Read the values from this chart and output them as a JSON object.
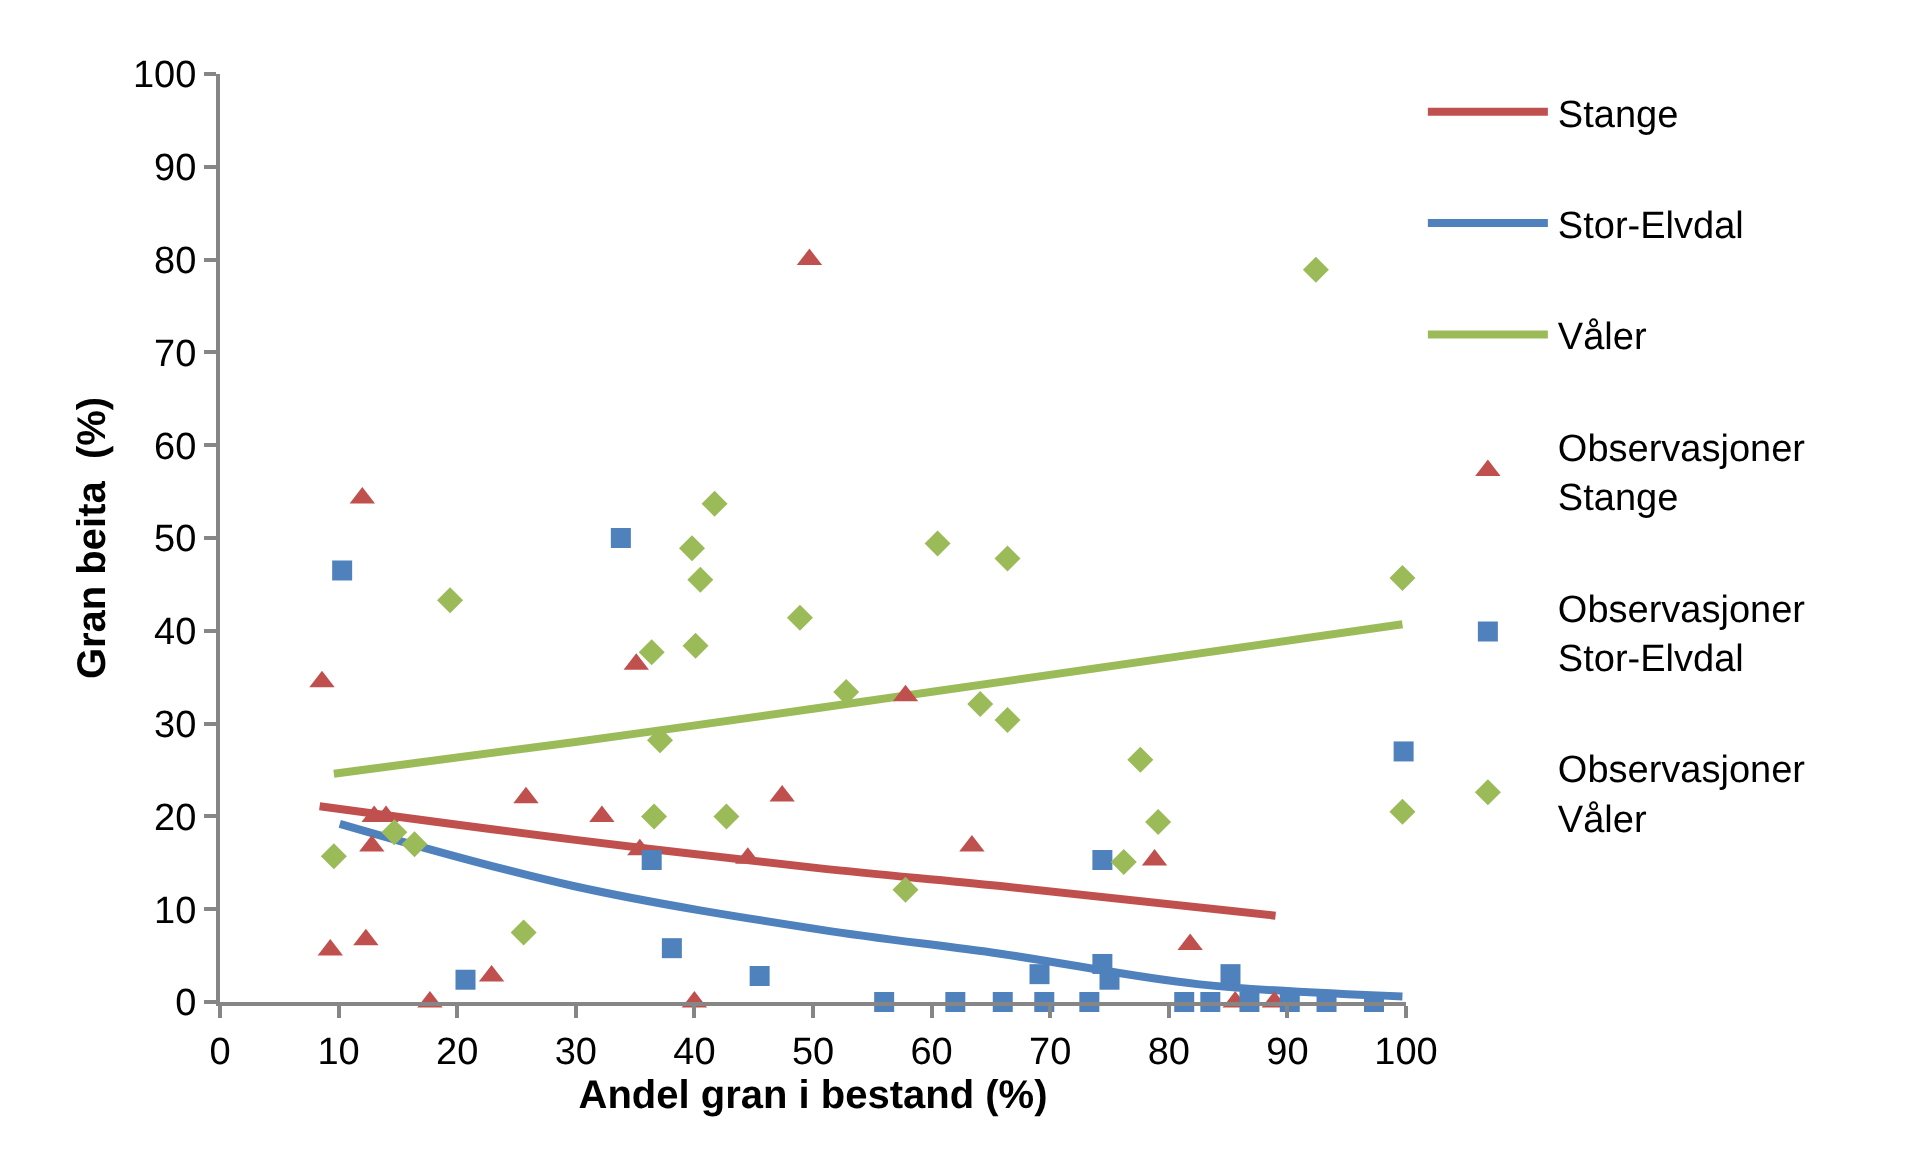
{
  "chart_data": {
    "type": "scatter",
    "xlabel": "Andel gran i bestand (%)",
    "ylabel": "Gran beita  (%)",
    "xlim": [
      0,
      100
    ],
    "xticks": [
      0,
      10,
      20,
      30,
      40,
      50,
      60,
      70,
      80,
      90,
      100
    ],
    "ylim": [
      0,
      100
    ],
    "yticks": [
      0,
      10,
      20,
      30,
      40,
      50,
      60,
      70,
      80,
      90,
      100
    ],
    "grid": false,
    "legend": "right",
    "series": [
      {
        "name": "Stange",
        "type": "line",
        "color": "#c0504d",
        "marker": "none",
        "x": [
          8.4,
          29.8,
          50.6,
          65.8,
          89
        ],
        "values": [
          21.1,
          17.5,
          14.4,
          12.5,
          9.3
        ]
      },
      {
        "name": "Stor-Elvdal",
        "type": "line",
        "color": "#4f81bd",
        "marker": "none",
        "x": [
          10.1,
          29.8,
          50.6,
          65.8,
          82.6,
          99.7
        ],
        "values": [
          19.2,
          12.5,
          7.8,
          5.2,
          1.9,
          0.6
        ]
      },
      {
        "name": "Våler",
        "type": "line",
        "color": "#9bbb59",
        "marker": "none",
        "x": [
          9.6,
          29.8,
          50.6,
          99.7
        ],
        "values": [
          24.6,
          28,
          31.7,
          40.7
        ]
      },
      {
        "name": "Observasjoner Stange",
        "color": "#c0504d",
        "marker": "triangle",
        "x": [
          8.6,
          9.3,
          12,
          12.8,
          12.3,
          13,
          14,
          17.7,
          22.9,
          25.8,
          32.2,
          35.1,
          35.4,
          40,
          49.7,
          47.4,
          44.5,
          57.8,
          63.4,
          78.8,
          81.8,
          85.6,
          88.9
        ],
        "values": [
          34.5,
          5.6,
          54.3,
          16.8,
          6.7,
          20,
          20,
          0,
          2.8,
          22,
          20,
          36.4,
          16.4,
          0,
          80,
          22.2,
          15.5,
          33,
          16.8,
          15.3,
          6.2,
          0,
          0
        ]
      },
      {
        "name": "Observasjoner Stor-Elvdal",
        "color": "#4f81bd",
        "marker": "square",
        "x": [
          10.3,
          20.7,
          33.8,
          36.4,
          38.1,
          45.5,
          56,
          62,
          66,
          69.5,
          73.3,
          81.3,
          83.5,
          86.8,
          90.2,
          93.3,
          97.3,
          69.1,
          74.4,
          74.4,
          75,
          85.2,
          99.8
        ],
        "values": [
          46.5,
          2.4,
          50,
          15.3,
          5.8,
          2.8,
          0,
          0,
          0,
          0,
          0,
          0,
          0,
          0,
          0,
          0,
          0,
          3,
          15.3,
          4.1,
          2.4,
          3,
          27
        ]
      },
      {
        "name": "Observasjoner Våler",
        "color": "#9bbb59",
        "marker": "diamond",
        "x": [
          9.6,
          19.4,
          14.7,
          16.4,
          25.6,
          36.4,
          37.1,
          36.6,
          39.8,
          40.5,
          41.7,
          40.1,
          42.7,
          48.9,
          52.8,
          57.8,
          60.5,
          64.1,
          66.4,
          66.4,
          77.6,
          79.1,
          76.2,
          92.4,
          99.7,
          99.7
        ],
        "values": [
          15.7,
          43.3,
          18.3,
          17,
          7.5,
          37.7,
          28.2,
          20,
          48.9,
          45.5,
          53.7,
          38.4,
          20,
          41.4,
          33.4,
          12.1,
          49.4,
          32.1,
          47.8,
          30.4,
          26.1,
          19.4,
          15.1,
          78.9,
          45.7,
          20.5
        ]
      }
    ]
  }
}
